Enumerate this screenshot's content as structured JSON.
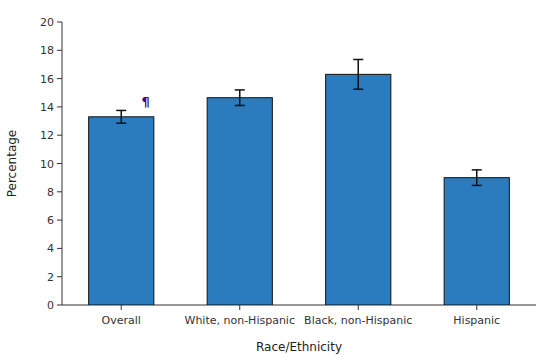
{
  "chart_data": {
    "type": "bar",
    "categories": [
      "Overall",
      "White, non-Hispanic",
      "Black, non-Hispanic",
      "Hispanic"
    ],
    "values": [
      13.3,
      14.65,
      16.3,
      9.0
    ],
    "errors_lower": [
      0.45,
      0.55,
      1.05,
      0.55
    ],
    "errors_upper": [
      0.45,
      0.55,
      1.05,
      0.55
    ],
    "color": "#2b7bbf",
    "xlabel": "Race/Ethnicity",
    "ylabel": "Percentage",
    "ylim": [
      0,
      20
    ],
    "yticks": [
      0,
      2,
      4,
      6,
      8,
      10,
      12,
      14,
      16,
      18,
      20
    ],
    "grid": false,
    "annotations": [
      {
        "text": "¶",
        "category": "Overall",
        "color": "#4b0082"
      }
    ]
  }
}
